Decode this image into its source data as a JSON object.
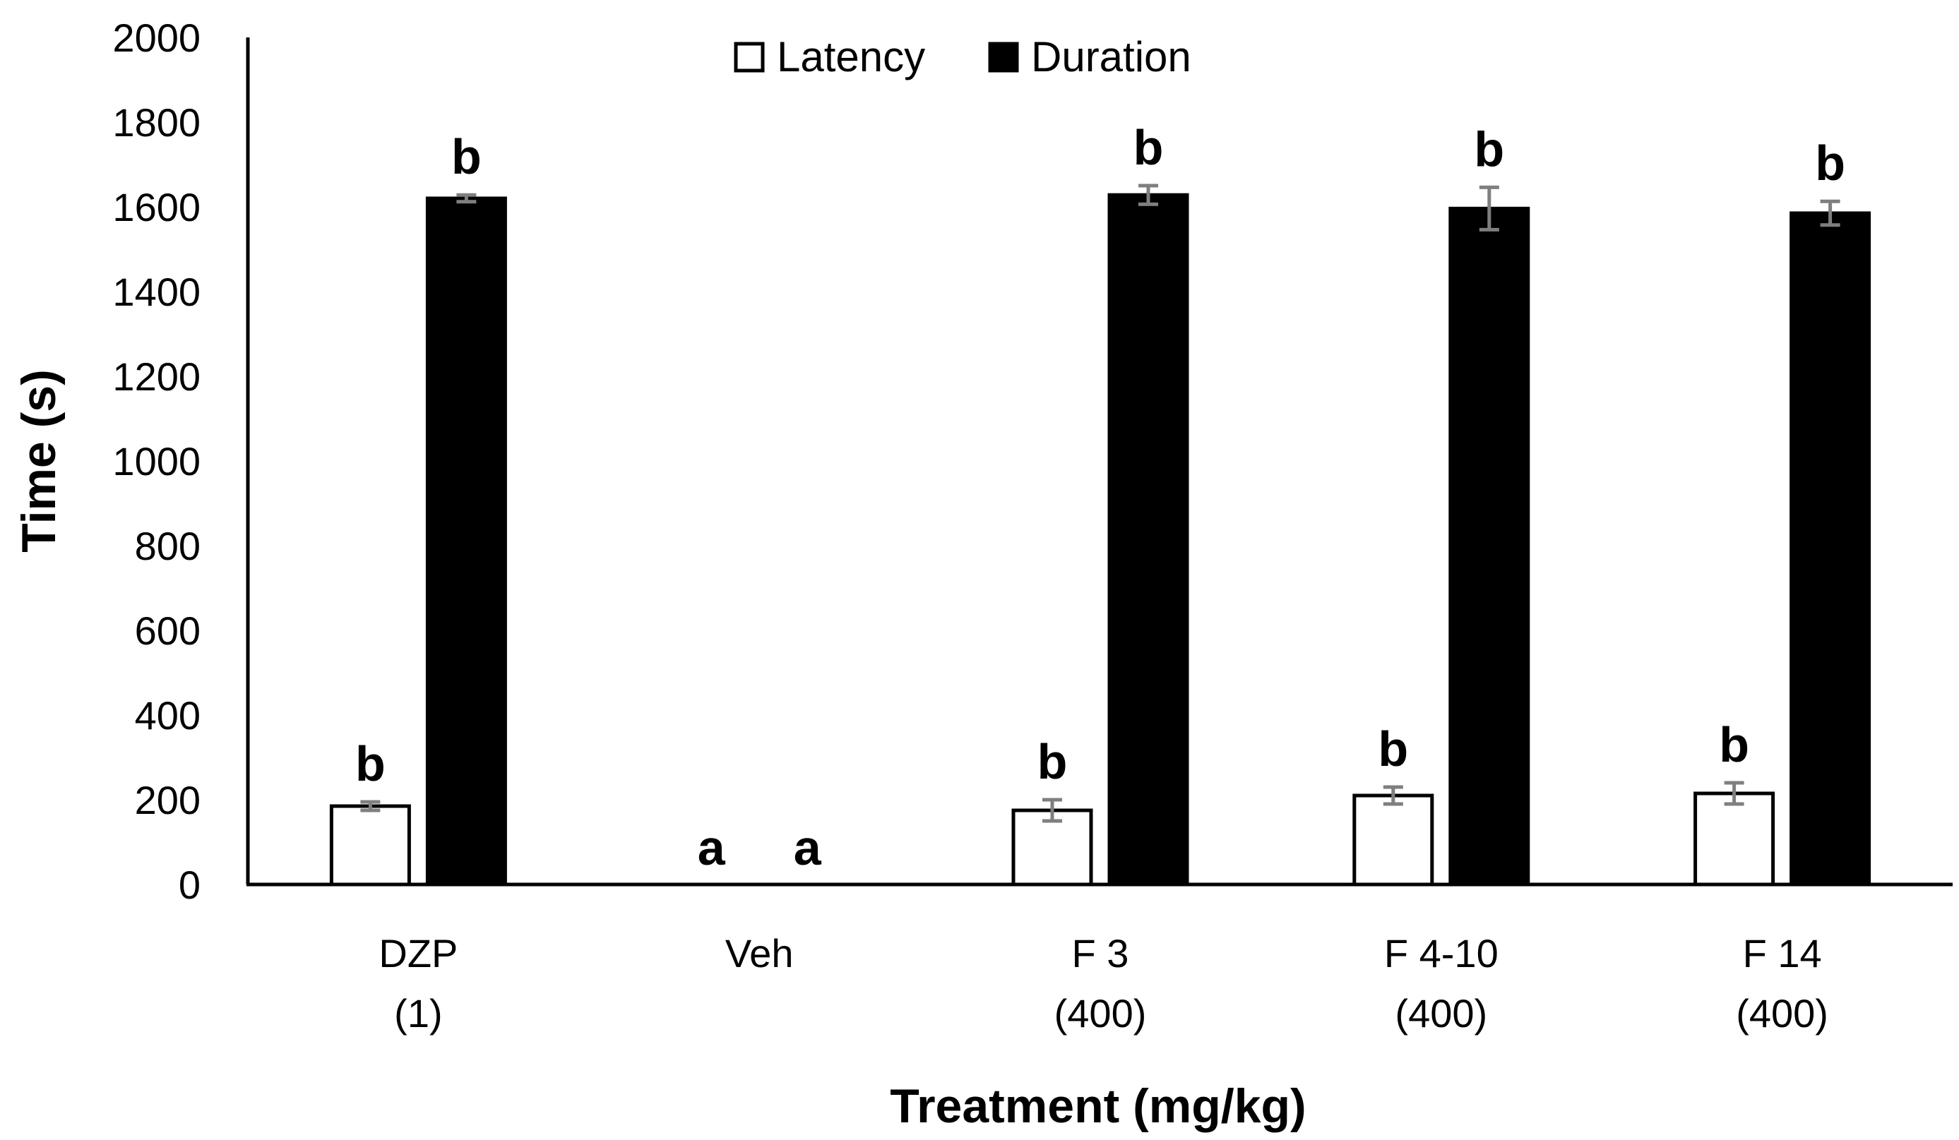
{
  "chart_data": {
    "type": "bar",
    "title": "",
    "xlabel": "Treatment (mg/kg)",
    "ylabel": "Time (s)",
    "ylim": [
      0,
      2000
    ],
    "yticks": [
      "0",
      "200",
      "400",
      "600",
      "800",
      "1000",
      "1200",
      "1400",
      "1600",
      "1800",
      "2000"
    ],
    "grid": false,
    "legend_position": "top-center",
    "categories": [
      {
        "line1": "DZP",
        "line2": "(1)"
      },
      {
        "line1": "Veh",
        "line2": ""
      },
      {
        "line1": "F 3",
        "line2": "(400)"
      },
      {
        "line1": "F 4-10",
        "line2": "(400)"
      },
      {
        "line1": "F 14",
        "line2": "(400)"
      }
    ],
    "series": [
      {
        "name": "Latency",
        "color": "#ffffff",
        "values": [
          185,
          0,
          175,
          210,
          215
        ],
        "errors": [
          10,
          0,
          25,
          20,
          25
        ],
        "significance": [
          "b",
          "a",
          "b",
          "b",
          "b"
        ]
      },
      {
        "name": "Duration",
        "color": "#000000",
        "values": [
          1620,
          0,
          1628,
          1596,
          1585
        ],
        "errors": [
          8,
          0,
          22,
          50,
          28
        ],
        "significance": [
          "b",
          "a",
          "b",
          "b",
          "b"
        ]
      }
    ],
    "error_bar_color": "#7f7f7f"
  }
}
